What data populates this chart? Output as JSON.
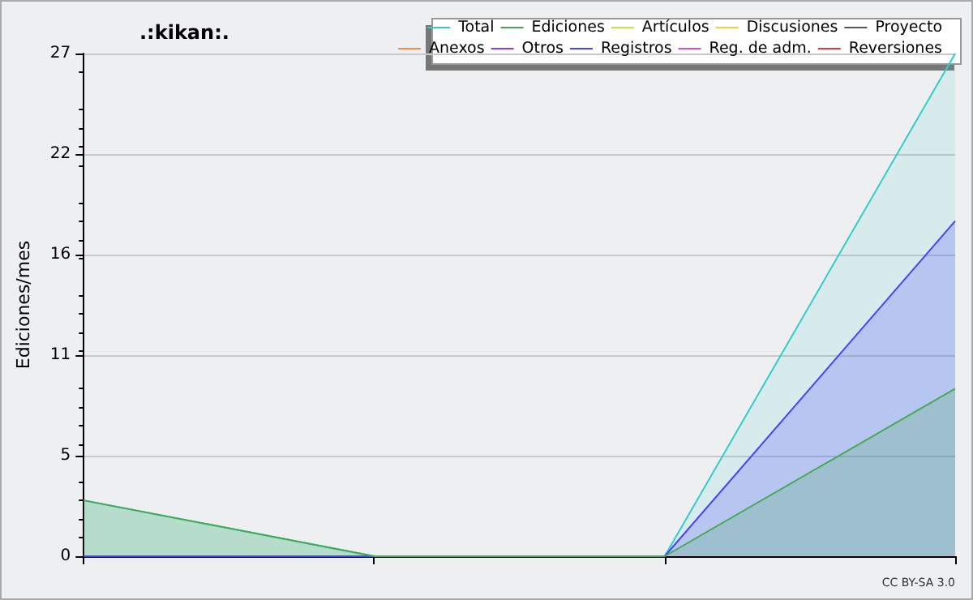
{
  "chart_data": {
    "type": "line",
    "title": ".:kikan:.",
    "ylabel": "Ediciones/mes",
    "annotations": [
      "CC BY-SA 3.0"
    ],
    "categories": [
      null,
      null,
      null,
      null
    ],
    "ylim": [
      0,
      27
    ],
    "yticks": [
      0,
      {
        "value": 5.4,
        "label": "5"
      },
      {
        "value": 10.8,
        "label": "11"
      },
      {
        "value": 16.2,
        "label": "16"
      },
      {
        "value": 21.6,
        "label": "22"
      },
      27
    ],
    "grid": "y",
    "legend": "top right",
    "marker": "none",
    "line_style": "solid",
    "series": [
      {
        "name": "Total",
        "type": "area",
        "color": "#33cccc",
        "values": [
          3,
          0,
          0,
          27
        ]
      },
      {
        "name": "Ediciones",
        "type": "area",
        "color": "#44aa55",
        "values": [
          3,
          0,
          0,
          9
        ]
      },
      {
        "name": "Artículos",
        "color": "#bbee33",
        "values": [
          null,
          null,
          null,
          null
        ]
      },
      {
        "name": "Discusiones",
        "color": "#ffcc33",
        "values": [
          null,
          null,
          null,
          null
        ]
      },
      {
        "name": "Proyecto",
        "color": "#555555",
        "values": [
          null,
          null,
          null,
          null
        ]
      },
      {
        "name": "Anexos",
        "color": "#ff8844",
        "values": [
          null,
          null,
          null,
          null
        ]
      },
      {
        "name": "Otros",
        "color": "#9933ee",
        "values": [
          null,
          null,
          null,
          null
        ]
      },
      {
        "name": "Registros",
        "type": "area",
        "color": "#4444ff",
        "values": [
          0,
          0,
          0,
          18
        ]
      },
      {
        "name": "Reg. de adm.",
        "color": "#dd44ee",
        "values": [
          null,
          null,
          null,
          null
        ]
      },
      {
        "name": "Reversiones",
        "color": "#ee3333",
        "values": [
          null,
          null,
          null,
          null
        ]
      }
    ]
  }
}
